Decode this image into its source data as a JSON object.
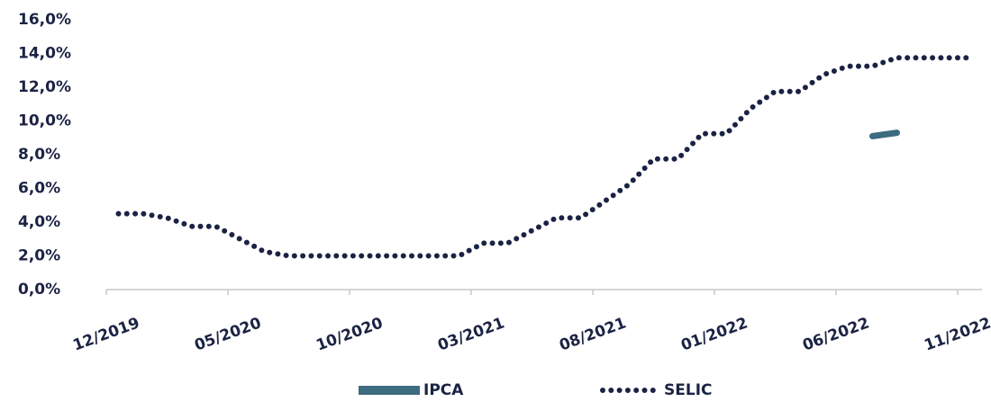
{
  "chart_data": {
    "type": "line",
    "categories": [
      "12/2019",
      null,
      null,
      null,
      null,
      "05/2020",
      null,
      null,
      null,
      null,
      "10/2020",
      null,
      null,
      null,
      null,
      "03/2021",
      null,
      null,
      null,
      null,
      "08/2021",
      null,
      null,
      null,
      null,
      "01/2022",
      null,
      null,
      null,
      null,
      "06/2022",
      null,
      null,
      null,
      null,
      "11/2022"
    ],
    "series": [
      {
        "name": "IPCA",
        "color": "#3d6b80",
        "style": "solid",
        "values": [
          null,
          null,
          null,
          null,
          null,
          null,
          null,
          null,
          null,
          null,
          null,
          null,
          null,
          null,
          null,
          null,
          null,
          null,
          null,
          null,
          null,
          null,
          null,
          null,
          null,
          null,
          null,
          null,
          null,
          null,
          null,
          9.1,
          9.3,
          null,
          null,
          null
        ]
      },
      {
        "name": "SELIC",
        "color": "#1b2344",
        "style": "dotted",
        "values": [
          4.5,
          4.5,
          4.25,
          3.75,
          3.75,
          3.0,
          2.25,
          2.0,
          2.0,
          2.0,
          2.0,
          2.0,
          2.0,
          2.0,
          2.0,
          2.75,
          2.75,
          3.5,
          4.25,
          4.25,
          5.25,
          6.25,
          7.75,
          7.75,
          9.25,
          9.25,
          10.75,
          11.75,
          11.75,
          12.75,
          13.25,
          13.25,
          13.75,
          13.75,
          13.75,
          13.75
        ]
      }
    ],
    "ylim": [
      0,
      16
    ],
    "yticks": [
      {
        "value": 0,
        "label": "0,0%"
      },
      {
        "value": 2,
        "label": "2,0%"
      },
      {
        "value": 4,
        "label": "4,0%"
      },
      {
        "value": 6,
        "label": "6,0%"
      },
      {
        "value": 8,
        "label": "8,0%"
      },
      {
        "value": 10,
        "label": "10,0%"
      },
      {
        "value": 12,
        "label": "12,0%"
      },
      {
        "value": 14,
        "label": "14,0%"
      },
      {
        "value": 16,
        "label": "16,0%"
      }
    ],
    "grid": false,
    "legend": "bottom"
  }
}
